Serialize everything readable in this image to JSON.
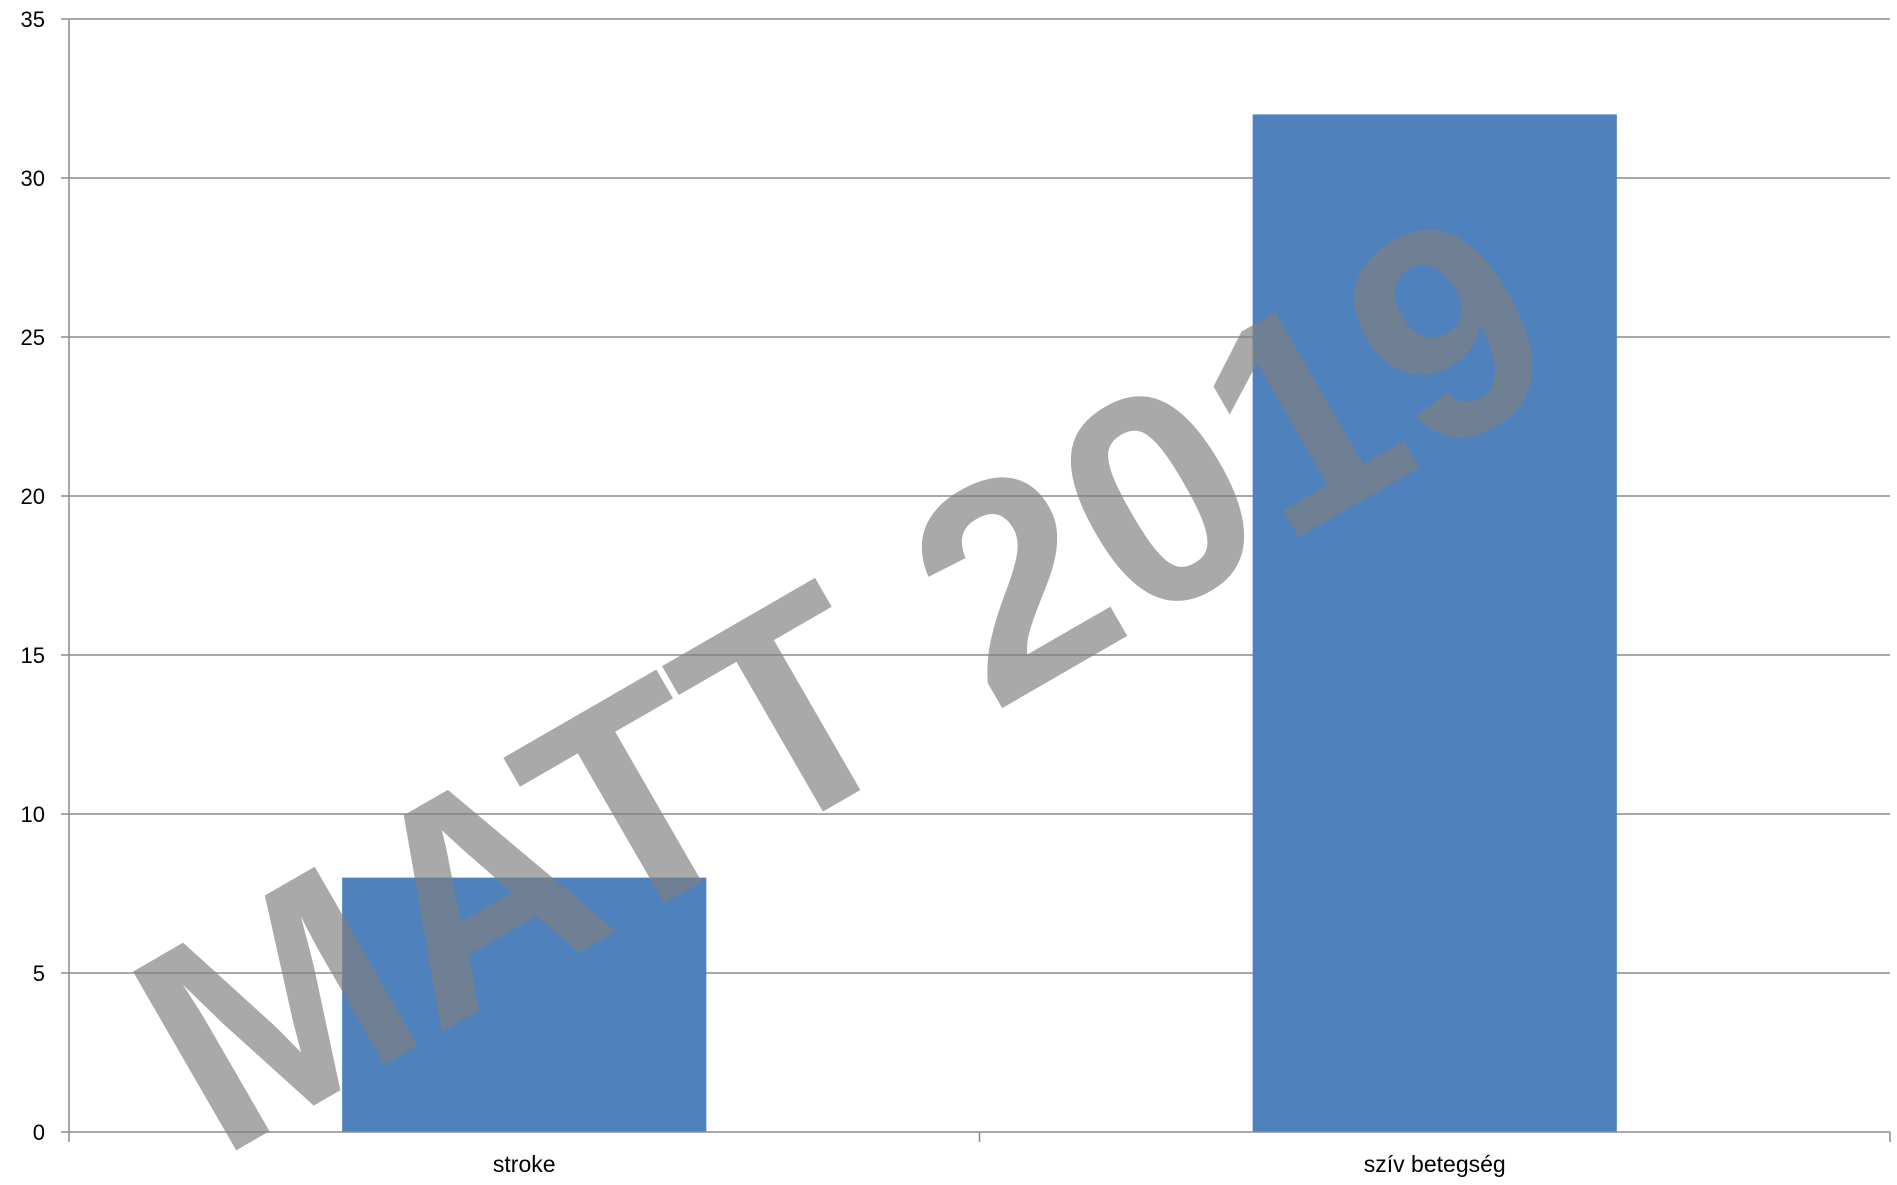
{
  "chart_data": {
    "type": "bar",
    "categories": [
      "stroke",
      "szív betegség"
    ],
    "series": [
      {
        "values": [
          8,
          32
        ]
      }
    ],
    "ylim": [
      0,
      35
    ],
    "yticks": [
      0,
      5,
      10,
      15,
      20,
      25,
      30,
      35
    ],
    "grid": true,
    "legend": "none",
    "colors": {
      "bar": "#4F81BD",
      "grid": "#8C8C8C",
      "axis": "#8C8C8C",
      "watermark": "#808080"
    }
  },
  "watermark": {
    "text": "MATT 2019"
  }
}
